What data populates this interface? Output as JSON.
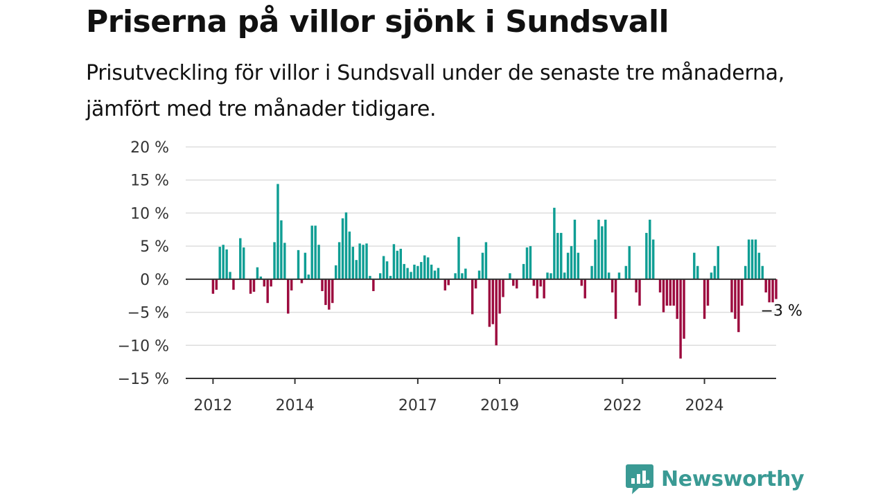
{
  "title": "Priserna på villor sjönk i Sundsvall",
  "subtitle": "Prisutveckling för villor i Sundsvall under de senaste tre månaderna, jämfört med tre månader tidigare.",
  "brand": {
    "name": "Newsworthy",
    "icon": "newsworthy-logo-icon",
    "color": "#3a9a94"
  },
  "colors": {
    "positive": "#0f9e94",
    "negative": "#9c0a3e",
    "grid": "#dddddd",
    "zero_line": "#333333"
  },
  "chart_data": {
    "type": "bar",
    "title": "Priserna på villor sjönk i Sundsvall",
    "subtitle": "Prisutveckling för villor i Sundsvall under de senaste tre månaderna, jämfört med tre månader tidigare.",
    "xlabel": "",
    "ylabel": "",
    "ylim": [
      -15,
      20
    ],
    "yticks": [
      20,
      15,
      10,
      5,
      0,
      -5,
      -10,
      -15
    ],
    "ytick_labels": [
      "20 %",
      "15 %",
      "10 %",
      "5 %",
      "0 %",
      "−5 %",
      "−10 %",
      "−15 %"
    ],
    "xlim": [
      "2011-05",
      "2025-10"
    ],
    "xticks": [
      "2012-01",
      "2014-01",
      "2017-01",
      "2019-01",
      "2022-01",
      "2024-01"
    ],
    "xtick_labels": [
      "2012",
      "2014",
      "2017",
      "2019",
      "2022",
      "2024"
    ],
    "grid": true,
    "legend": "none",
    "start_month": "2012-01",
    "unit": "%",
    "values": [
      -2.2,
      -1.6,
      4.9,
      5.2,
      4.5,
      1.1,
      -1.6,
      0,
      6.2,
      4.8,
      0,
      -2.2,
      -1.9,
      1.8,
      0.4,
      -1.1,
      -3.6,
      -1.1,
      5.6,
      14.4,
      8.9,
      5.5,
      -5.2,
      -1.7,
      0,
      4.4,
      -0.6,
      4.0,
      0.7,
      8.1,
      8.1,
      5.2,
      -1.8,
      -3.9,
      -4.6,
      -3.6,
      2.1,
      5.6,
      9.2,
      10.1,
      7.2,
      4.9,
      2.9,
      5.4,
      5.2,
      5.4,
      0.5,
      -1.8,
      0,
      0.9,
      3.5,
      2.7,
      0.5,
      5.3,
      4.3,
      4.6,
      2.3,
      1.7,
      1.1,
      2.2,
      2.0,
      2.6,
      3.6,
      3.3,
      2.2,
      1.3,
      1.7,
      0,
      -1.7,
      -0.9,
      0,
      0.9,
      6.4,
      0.9,
      1.6,
      0,
      -5.3,
      -1.4,
      1.3,
      4.0,
      5.6,
      -7.2,
      -6.8,
      -10.0,
      -5.2,
      -2.7,
      0,
      0.9,
      -1.0,
      -1.4,
      0,
      2.3,
      4.8,
      5.0,
      -1.0,
      -2.9,
      -1.1,
      -2.9,
      1.0,
      0.9,
      10.8,
      7.0,
      7.0,
      1.0,
      4.0,
      5.0,
      9.0,
      4.0,
      -1.0,
      -2.9,
      0,
      2.0,
      6.0,
      9.0,
      8.0,
      9.0,
      1.0,
      -2.0,
      -6.0,
      1.0,
      0,
      2.0,
      5.0,
      0,
      -2.0,
      -4.0,
      0,
      7.0,
      9.0,
      6.0,
      0,
      -2.0,
      -5.0,
      -4.0,
      -4.0,
      -4.0,
      -6.0,
      -12.0,
      -9.0,
      0,
      0,
      4.0,
      2.0,
      0,
      -6.0,
      -4.0,
      1.0,
      2.0,
      5.0,
      0,
      0,
      0,
      -5.0,
      -6.0,
      -8.0,
      -4.0,
      2.0,
      6.0,
      6.0,
      6.0,
      4.0,
      2.0,
      -2.0,
      -3.5,
      -3.5,
      -3.0
    ],
    "annotations": [
      {
        "text": "−3 %",
        "x": "2025-03",
        "y": -3
      }
    ]
  }
}
